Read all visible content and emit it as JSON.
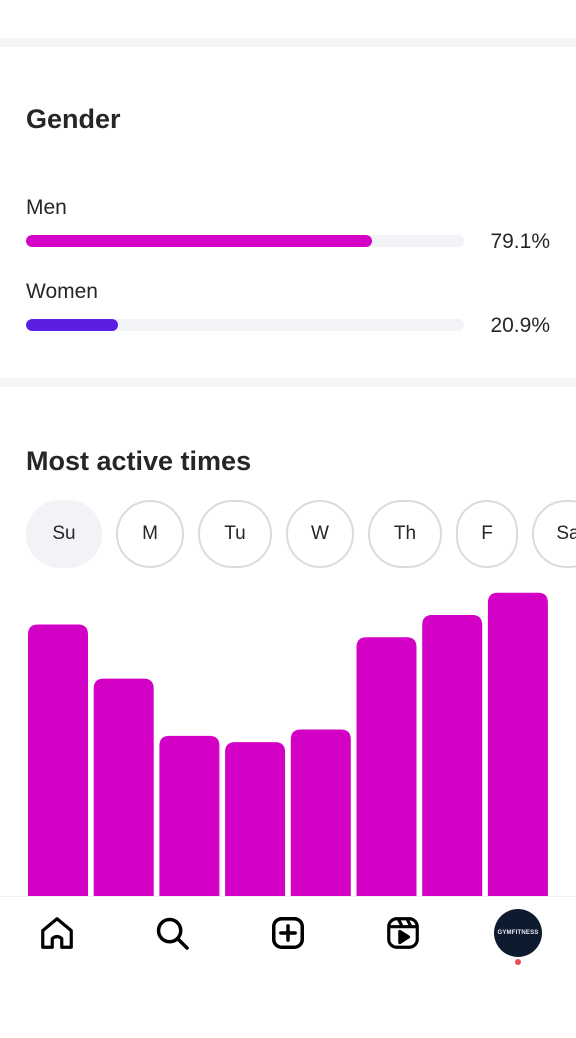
{
  "gender": {
    "title": "Gender",
    "rows": [
      {
        "label": "Men",
        "percent_text": "79.1%",
        "value": 79.1,
        "color": "#d300c5"
      },
      {
        "label": "Women",
        "percent_text": "20.9%",
        "value": 20.9,
        "color": "#5b1ee3"
      }
    ],
    "track_color": "#f2f3f6"
  },
  "active_times": {
    "title": "Most active times",
    "days": [
      {
        "label": "Su",
        "selected": true
      },
      {
        "label": "M",
        "selected": false
      },
      {
        "label": "Tu",
        "selected": false
      },
      {
        "label": "W",
        "selected": false
      },
      {
        "label": "Th",
        "selected": false
      },
      {
        "label": "F",
        "selected": false
      },
      {
        "label": "Sa",
        "selected": false
      }
    ]
  },
  "chart_data": {
    "type": "bar",
    "bar_color": "#d300c5",
    "values": [
      86,
      69,
      51,
      49,
      53,
      82,
      89,
      96
    ],
    "ylim": [
      0,
      100
    ]
  },
  "bottom_nav": {
    "items": [
      {
        "icon": "home-icon"
      },
      {
        "icon": "search-icon"
      },
      {
        "icon": "create-icon"
      },
      {
        "icon": "reels-icon"
      },
      {
        "icon": "profile-avatar"
      }
    ],
    "avatar_text": "GYMFITNESS"
  }
}
